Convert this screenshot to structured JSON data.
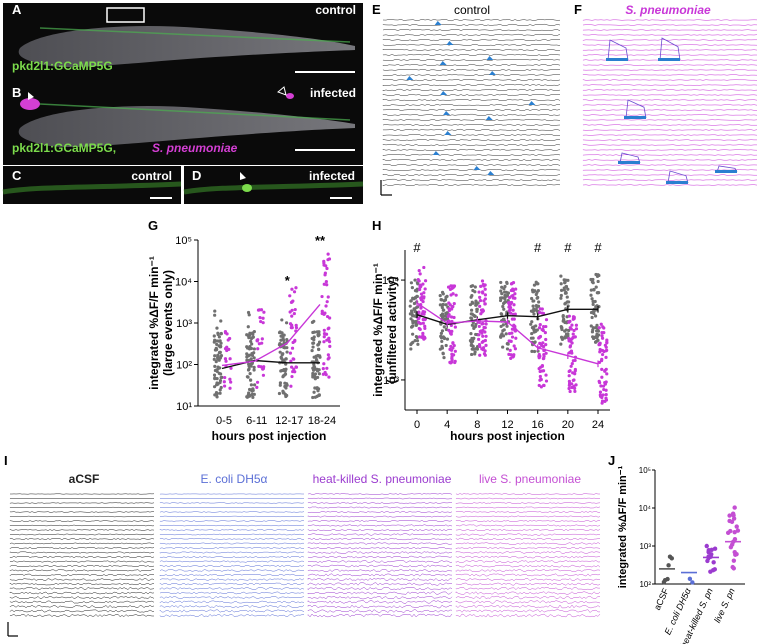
{
  "panels": {
    "A": {
      "letter": "A",
      "label_right": "control",
      "caption": "pkd2l1:GCaMP5G"
    },
    "B": {
      "letter": "B",
      "label_right": "infected",
      "caption_green": "pkd2l1:GCaMP5G,",
      "caption_magenta": "S. pneumoniae"
    },
    "C": {
      "letter": "C",
      "label": "control"
    },
    "D": {
      "letter": "D",
      "label": "infected"
    },
    "E": {
      "letter": "E",
      "title": "control"
    },
    "F": {
      "letter": "F",
      "title": "S. pneumoniae"
    },
    "G": {
      "letter": "G"
    },
    "H": {
      "letter": "H"
    },
    "I": {
      "letter": "I"
    },
    "J": {
      "letter": "J"
    }
  },
  "colors": {
    "control": "#707070",
    "infected": "#c837d8",
    "event": "#2a7fd0",
    "ecoli": "#5b6fd6",
    "heatkilled": "#9b3bcf",
    "live": "#c44fd3",
    "green": "#7cdc4c"
  },
  "chart_data": [
    {
      "id": "G",
      "type": "scatter",
      "ylabel": "integrated %ΔF/F min⁻¹",
      "ylabel2": "(large events only)",
      "xlabel": "hours post injection",
      "categories": [
        "0-5",
        "6-11",
        "12-17",
        "18-24"
      ],
      "y_scale": "log",
      "ylim": [
        10,
        100000
      ],
      "yticks": [
        "10¹",
        "10²",
        "10³",
        "10⁴",
        "10⁵"
      ],
      "series": [
        {
          "key": "control",
          "medians": [
            80,
            125,
            110,
            110
          ]
        },
        {
          "key": "infected",
          "medians": [
            95,
            120,
            330,
            2800
          ]
        }
      ],
      "significance": [
        {
          "category": "12-17",
          "label": "*"
        },
        {
          "category": "18-24",
          "label": "**"
        }
      ]
    },
    {
      "id": "H",
      "type": "line",
      "ylabel": "integrated %ΔF/F min⁻¹",
      "ylabel2": "(unfiltered activity)",
      "xlabel": "hours post injection",
      "x": [
        0,
        4,
        8,
        12,
        16,
        20,
        24
      ],
      "y_scale": "log",
      "ylim": [
        500,
        20000
      ],
      "yticks": [
        "10³",
        "10⁴"
      ],
      "series": [
        {
          "key": "control",
          "values": [
            4500,
            3600,
            4000,
            4400,
            4300,
            5100,
            5100
          ]
        },
        {
          "key": "infected",
          "values": [
            5900,
            3700,
            3900,
            3800,
            2100,
            1750,
            1450
          ]
        }
      ],
      "significance_x": [
        0,
        16,
        20,
        24
      ],
      "significance_label": "#"
    },
    {
      "id": "I",
      "type": "line",
      "conditions": [
        {
          "label": "aCSF",
          "key": "control"
        },
        {
          "label": "E. coli DH5α",
          "key": "ecoli"
        },
        {
          "label": "heat-killed S. pneumoniae",
          "key": "heatkilled"
        },
        {
          "label": "live S. pneumoniae",
          "key": "live"
        }
      ]
    },
    {
      "id": "J",
      "type": "scatter",
      "ylabel": "integrated %ΔF/F min⁻¹",
      "y_scale": "log",
      "ylim": [
        100,
        100000
      ],
      "yticks": [
        "10²",
        "10³",
        "10⁴",
        "10⁵"
      ],
      "categories": [
        "aCSF",
        "E. coli DH5α",
        "heat-killed S. pn",
        "live S. pn"
      ],
      "medians": [
        250,
        200,
        500,
        1300
      ]
    }
  ]
}
